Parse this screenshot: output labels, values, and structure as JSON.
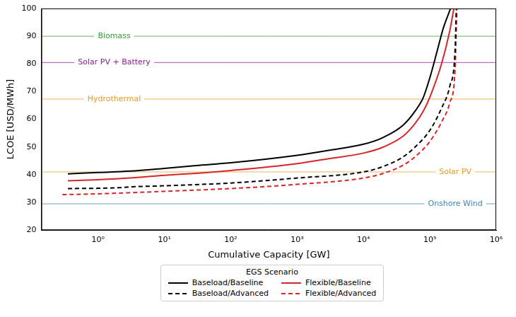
{
  "chart_data": {
    "type": "line",
    "x_label": "Cumulative Capacity [GW]",
    "y_label": "LCOE [USD/MWh]",
    "legend_title": "EGS Scenario",
    "legend": "bottom",
    "log": "x",
    "grid": false,
    "xlim": [
      0.14,
      1000000
    ],
    "xticks": [
      {
        "value": 1,
        "label": "10⁰"
      },
      {
        "value": 10,
        "label": "10¹"
      },
      {
        "value": 100,
        "label": "10²"
      },
      {
        "value": 1000,
        "label": "10³"
      },
      {
        "value": 10000,
        "label": "10⁴"
      },
      {
        "value": 100000,
        "label": "10⁵"
      },
      {
        "value": 1000000,
        "label": "10⁶"
      }
    ],
    "ylim": [
      20,
      100
    ],
    "yticks": [
      20,
      30,
      40,
      50,
      60,
      70,
      80,
      90,
      100
    ],
    "series": [
      {
        "name": "Baseload/Baseline",
        "color": "#000000",
        "line_style": "solid",
        "x": [
          0.35,
          1,
          3,
          10,
          30,
          100,
          1000,
          3000,
          10000,
          20000,
          40000,
          60000,
          80000,
          100000,
          130000,
          160000,
          205000
        ],
        "values": [
          40.3,
          40.8,
          41.3,
          42.3,
          43.3,
          44.3,
          47,
          48.8,
          51,
          53.5,
          58,
          63,
          68,
          75,
          85,
          93,
          100
        ]
      },
      {
        "name": "Baseload/Advanced",
        "color": "#000000",
        "line_style": "dashed",
        "x": [
          0.35,
          1,
          2,
          3,
          10,
          100,
          1000,
          10000,
          20000,
          40000,
          60000,
          100000,
          150000,
          200000,
          240000,
          250000
        ],
        "values": [
          35,
          35.1,
          35.3,
          35.6,
          36,
          37,
          38.8,
          41,
          43,
          46.5,
          50,
          56,
          64,
          72,
          85,
          100
        ]
      },
      {
        "name": "Flexible/Baseline",
        "color": "#d62728",
        "line_style": "solid",
        "x": [
          0.35,
          1,
          3,
          10,
          30,
          100,
          1000,
          3000,
          10000,
          20000,
          40000,
          60000,
          80000,
          100000,
          150000,
          200000,
          230000
        ],
        "values": [
          37.8,
          38.2,
          38.8,
          39.8,
          40.5,
          41.5,
          44,
          45.8,
          47.8,
          50,
          54,
          58.5,
          63,
          68,
          80,
          92,
          100
        ]
      },
      {
        "name": "Flexible/Advanced",
        "color": "#d62728",
        "line_style": "dashed",
        "x": [
          0.29,
          1,
          3,
          10,
          100,
          1000,
          10000,
          20000,
          40000,
          60000,
          100000,
          150000,
          200000,
          240000,
          255000
        ],
        "values": [
          32.8,
          33.1,
          33.5,
          34,
          35,
          36.5,
          38.8,
          40.5,
          43.5,
          46.5,
          52,
          59,
          66,
          78,
          100
        ]
      }
    ],
    "reference_lines": [
      {
        "name": "Biomass",
        "value": 90,
        "color": "#2ca02c"
      },
      {
        "name": "Solar PV + Battery",
        "value": 80.5,
        "color": "#8e1c8e"
      },
      {
        "name": "Hydrothermal",
        "value": 67.3,
        "color": "#e89a28"
      },
      {
        "name": "Solar PV",
        "value": 41,
        "color": "#e89a28"
      },
      {
        "name": "Onshore Wind",
        "value": 29.5,
        "color": "#3a86b4"
      }
    ]
  }
}
